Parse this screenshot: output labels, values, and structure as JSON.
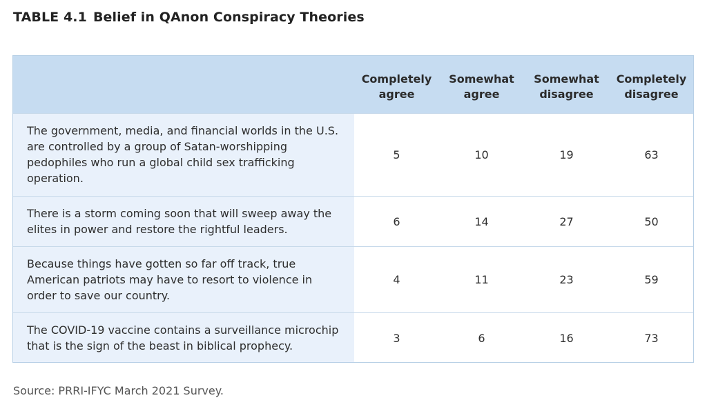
{
  "title": {
    "number": "TABLE 4.1",
    "text": "Belief in QAnon Conspiracy Theories"
  },
  "table": {
    "headers": [
      {
        "line1": "Completely",
        "line2": "agree"
      },
      {
        "line1": "Somewhat",
        "line2": "agree"
      },
      {
        "line1": "Somewhat",
        "line2": "disagree"
      },
      {
        "line1": "Completely",
        "line2": "disagree"
      }
    ],
    "rows": [
      {
        "statement": "The government, media, and financial worlds in the U.S. are controlled by a group of Satan-worshipping pedophiles who run a global child sex trafficking operation.",
        "values": [
          "5",
          "10",
          "19",
          "63"
        ]
      },
      {
        "statement": "There is a storm coming soon that will sweep away the elites in power and restore the rightful leaders.",
        "values": [
          "6",
          "14",
          "27",
          "50"
        ]
      },
      {
        "statement": "Because things have gotten so far off track, true American patriots may have to resort to violence in order to save our country.",
        "values": [
          "4",
          "11",
          "23",
          "59"
        ]
      },
      {
        "statement": "The COVID-19 vaccine contains a surveillance microchip that is the sign of the beast in biblical prophecy.",
        "values": [
          "3",
          "6",
          "16",
          "73"
        ]
      }
    ]
  },
  "source": "Source: PRRI-IFYC March 2021 Survey.",
  "colors": {
    "header_bg": "#c6dcf1",
    "statement_bg": "#e9f1fb",
    "border": "#b8d0e6"
  }
}
